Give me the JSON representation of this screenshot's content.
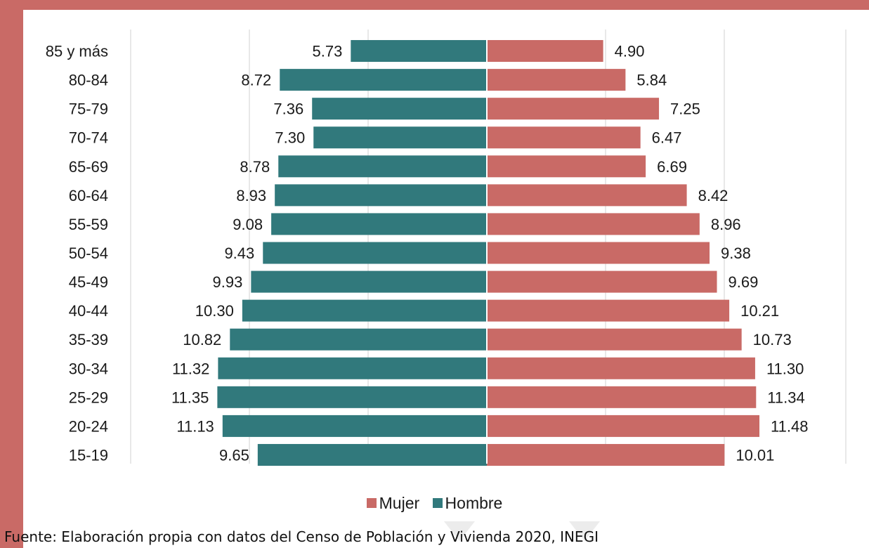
{
  "colors": {
    "accent": "#c96a66",
    "mujer": "#c96a66",
    "hombre": "#31797c",
    "grid": "#d9d9d9"
  },
  "chart_data": {
    "type": "bar",
    "orientation": "horizontal-pyramid",
    "categories": [
      "85 y más",
      "80-84",
      "75-79",
      "70-74",
      "65-69",
      "60-64",
      "55-59",
      "50-54",
      "45-49",
      "40-44",
      "35-39",
      "30-34",
      "25-29",
      "20-24",
      "15-19"
    ],
    "series": [
      {
        "name": "Hombre",
        "values": [
          5.73,
          8.72,
          7.36,
          7.3,
          8.78,
          8.93,
          9.08,
          9.43,
          9.93,
          10.3,
          10.82,
          11.32,
          11.35,
          11.13,
          9.65
        ]
      },
      {
        "name": "Mujer",
        "values": [
          4.9,
          5.84,
          7.25,
          6.47,
          6.69,
          8.42,
          8.96,
          9.38,
          9.69,
          10.21,
          10.73,
          11.3,
          11.34,
          11.48,
          10.01
        ]
      }
    ],
    "value_labels": {
      "Hombre": [
        "5.73",
        "8.72",
        "7.36",
        "7.30",
        "8.78",
        "8.93",
        "9.08",
        "9.43",
        "9.93",
        "10.30",
        "10.82",
        "11.32",
        "11.35",
        "11.13",
        "9.65"
      ],
      "Mujer": [
        "4.90",
        "5.84",
        "7.25",
        "6.47",
        "6.69",
        "8.42",
        "8.96",
        "9.38",
        "9.69",
        "10.21",
        "10.73",
        "11.30",
        "11.34",
        "11.48",
        "10.01"
      ]
    },
    "xlim": [
      -15,
      15
    ],
    "grid": true,
    "legend_position": "bottom"
  },
  "legend": {
    "mujer": "Mujer",
    "hombre": "Hombre"
  },
  "footer": {
    "source": "Fuente: Elaboración propia con datos del Censo de Población y Vivienda 2020, INEGI"
  }
}
